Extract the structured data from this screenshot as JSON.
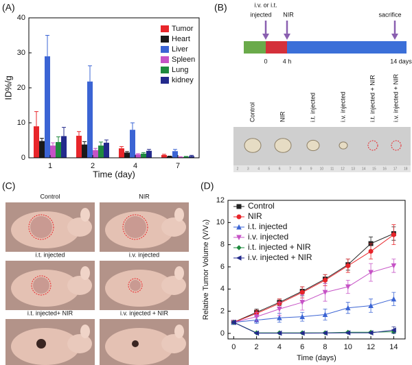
{
  "chart_data": [
    {
      "type": "bar",
      "panel_label": "(A)",
      "x_label": "Time (day)",
      "y_label": "ID%/g",
      "categories": [
        "1",
        "2",
        "4",
        "7"
      ],
      "ylim": [
        0,
        40
      ],
      "yticks": [
        0,
        10,
        20,
        30,
        40
      ],
      "legend": "upper right",
      "series": [
        {
          "name": "Tumor",
          "color": "#e8252a",
          "values": [
            9,
            6.3,
            2.7,
            0.8
          ],
          "errors": [
            4.2,
            1.2,
            0.5,
            0.2
          ]
        },
        {
          "name": "Heart",
          "color": "#1a1a1a",
          "values": [
            4.8,
            3.8,
            1.5,
            0.4
          ],
          "errors": [
            0.8,
            0.8,
            0.3,
            0.1
          ]
        },
        {
          "name": "Liver",
          "color": "#3b64d4",
          "values": [
            29,
            21.8,
            8,
            1.9
          ],
          "errors": [
            6,
            4.5,
            2,
            0.5
          ]
        },
        {
          "name": "Spleen",
          "color": "#c653c6",
          "values": [
            3.5,
            2.2,
            1,
            0.2
          ],
          "errors": [
            0.8,
            0.5,
            0.2,
            0.1
          ]
        },
        {
          "name": "Lung",
          "color": "#1e8a3e",
          "values": [
            4.5,
            3.5,
            1.2,
            0.3
          ],
          "errors": [
            1.5,
            1,
            0.3,
            0.1
          ]
        },
        {
          "name": "kidney",
          "color": "#232a8c",
          "values": [
            6.2,
            4.3,
            2,
            0.5
          ],
          "errors": [
            2.5,
            0.8,
            0.4,
            0.2
          ]
        }
      ]
    },
    {
      "type": "line",
      "panel_label": "(D)",
      "x_label": "Time (days)",
      "y_label": "Relative Tumor Volume (V/V₀)",
      "x": [
        0,
        2,
        4,
        6,
        8,
        10,
        12,
        14
      ],
      "xlim": [
        -0.5,
        15
      ],
      "xticks": [
        0,
        2,
        4,
        6,
        8,
        10,
        12,
        14
      ],
      "ylim": [
        -0.5,
        12
      ],
      "yticks": [
        0,
        2,
        4,
        6,
        8,
        10,
        12
      ],
      "legend": "upper left",
      "series": [
        {
          "name": "Control",
          "color": "#222222",
          "marker": "square",
          "values": [
            1,
            1.9,
            2.8,
            3.8,
            4.9,
            6.2,
            8.1,
            9.0
          ],
          "errors": [
            0.1,
            0.3,
            0.3,
            0.4,
            0.4,
            0.5,
            0.6,
            0.6
          ]
        },
        {
          "name": "NIR",
          "color": "#e8252a",
          "marker": "circle",
          "values": [
            1,
            1.8,
            2.7,
            3.7,
            4.8,
            6.1,
            7.4,
            8.9
          ],
          "errors": [
            0.1,
            0.3,
            0.4,
            0.5,
            0.5,
            0.6,
            0.7,
            0.9
          ]
        },
        {
          "name": "i.t. injected",
          "color": "#3b64d4",
          "marker": "triangle-up",
          "values": [
            1,
            1.2,
            1.4,
            1.5,
            1.7,
            2.3,
            2.5,
            3.1
          ],
          "errors": [
            0.1,
            0.3,
            0.4,
            0.4,
            0.5,
            0.5,
            0.6,
            0.6
          ]
        },
        {
          "name": "i.v. injected",
          "color": "#c653c6",
          "marker": "triangle-down",
          "values": [
            1,
            1.5,
            2.2,
            2.8,
            3.7,
            4.2,
            5.5,
            6.1
          ],
          "errors": [
            0.1,
            0.4,
            0.6,
            0.7,
            0.8,
            0.6,
            0.8,
            0.6
          ]
        },
        {
          "name": "i.t. injected + NIR",
          "color": "#1e8a3e",
          "marker": "diamond",
          "values": [
            1,
            0.05,
            0.05,
            0.05,
            0.05,
            0.1,
            0.1,
            0.15
          ],
          "errors": [
            0.1,
            0.05,
            0.05,
            0.05,
            0.05,
            0.05,
            0.05,
            0.1
          ]
        },
        {
          "name": "i.v. injected + NIR",
          "color": "#232a8c",
          "marker": "triangle-left",
          "values": [
            1,
            0.02,
            0.02,
            0.02,
            0.03,
            0.05,
            0.05,
            0.3
          ],
          "errors": [
            0.1,
            0.02,
            0.02,
            0.02,
            0.03,
            0.05,
            0.05,
            0.3
          ]
        }
      ]
    }
  ],
  "timeline": {
    "panel_label": "(B)",
    "injection_note": "i.v. or i.t.",
    "injection": "injected",
    "irradiation": "NIR",
    "end": "sacrifice",
    "times": [
      "0",
      "4 h",
      "14 days"
    ],
    "samples": [
      "Control",
      "NIR",
      "i.t. injected",
      "i.v. injected",
      "i.t. injected + NIR",
      "i.v. injected + NIR"
    ],
    "ruler": [
      "2",
      "3",
      "4",
      "5",
      "6",
      "7",
      "8",
      "9",
      "10",
      "11",
      "12",
      "13",
      "14",
      "15",
      "16",
      "17",
      "18"
    ]
  },
  "photos": {
    "panel_label": "(C)",
    "labels": [
      "Control",
      "NIR",
      "i.t. injected",
      "i.v. injected",
      "i.t. injected+ NIR",
      "i.v. injected + NIR"
    ]
  }
}
